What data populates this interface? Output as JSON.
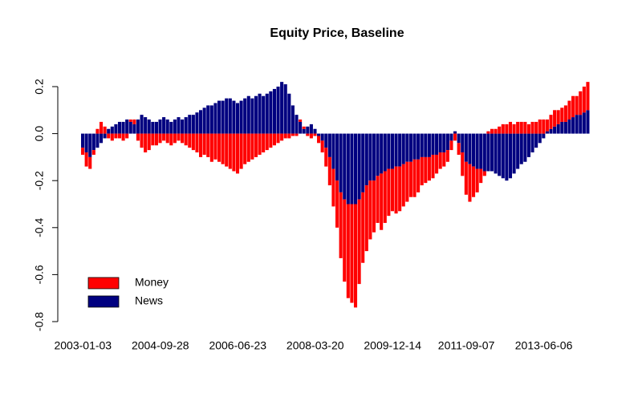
{
  "chart_data": {
    "type": "bar",
    "title": "Equity Price, Baseline",
    "categories": [
      "2003-01-03",
      null,
      null,
      null,
      null,
      null,
      null,
      null,
      null,
      null,
      null,
      null,
      null,
      null,
      null,
      null,
      null,
      null,
      null,
      null,
      null,
      "2004-09-28",
      null,
      null,
      null,
      null,
      null,
      null,
      null,
      null,
      null,
      null,
      null,
      null,
      null,
      null,
      null,
      null,
      null,
      null,
      null,
      null,
      "2006-06-23",
      null,
      null,
      null,
      null,
      null,
      null,
      null,
      null,
      null,
      null,
      null,
      null,
      null,
      null,
      null,
      null,
      null,
      null,
      null,
      null,
      "2008-03-20",
      null,
      null,
      null,
      null,
      null,
      null,
      null,
      null,
      null,
      null,
      null,
      null,
      null,
      null,
      null,
      null,
      null,
      null,
      null,
      null,
      "2009-12-14",
      null,
      null,
      null,
      null,
      null,
      null,
      null,
      null,
      null,
      null,
      null,
      null,
      null,
      null,
      null,
      null,
      null,
      null,
      null,
      "2011-09-07",
      null,
      null,
      null,
      null,
      null,
      null,
      null,
      null,
      null,
      null,
      null,
      null,
      null,
      null,
      null,
      null,
      null,
      null,
      null,
      null,
      "2013-06-06",
      null,
      null,
      null,
      null,
      null,
      null,
      null,
      null,
      null,
      null,
      null,
      null
    ],
    "series": [
      {
        "name": "Money",
        "color": "#ff0000",
        "values": [
          -0.03,
          -0.06,
          -0.05,
          -0.02,
          0.02,
          0.05,
          0.03,
          -0.02,
          -0.03,
          -0.02,
          -0.02,
          -0.03,
          -0.02,
          0.01,
          0.02,
          -0.03,
          -0.06,
          -0.08,
          -0.07,
          -0.05,
          -0.05,
          -0.04,
          -0.03,
          -0.04,
          -0.05,
          -0.04,
          -0.03,
          -0.04,
          -0.05,
          -0.06,
          -0.07,
          -0.08,
          -0.1,
          -0.09,
          -0.1,
          -0.12,
          -0.11,
          -0.12,
          -0.13,
          -0.14,
          -0.15,
          -0.16,
          -0.17,
          -0.15,
          -0.13,
          -0.12,
          -0.11,
          -0.1,
          -0.09,
          -0.08,
          -0.07,
          -0.06,
          -0.05,
          -0.04,
          -0.03,
          -0.02,
          -0.02,
          -0.01,
          -0.01,
          0.01,
          0.01,
          -0.01,
          -0.02,
          -0.01,
          -0.03,
          -0.05,
          -0.08,
          -0.12,
          -0.16,
          -0.2,
          -0.28,
          -0.35,
          -0.4,
          -0.42,
          -0.44,
          -0.36,
          -0.3,
          -0.28,
          -0.25,
          -0.22,
          -0.2,
          -0.24,
          -0.22,
          -0.2,
          -0.18,
          -0.2,
          -0.19,
          -0.18,
          -0.17,
          -0.15,
          -0.16,
          -0.14,
          -0.12,
          -0.11,
          -0.1,
          -0.1,
          -0.08,
          -0.07,
          -0.06,
          -0.05,
          -0.04,
          -0.03,
          -0.05,
          -0.1,
          -0.14,
          -0.16,
          -0.13,
          -0.1,
          -0.06,
          -0.02,
          0.01,
          0.02,
          0.02,
          0.03,
          0.04,
          0.04,
          0.05,
          0.04,
          0.05,
          0.05,
          0.05,
          0.04,
          0.05,
          0.05,
          0.06,
          0.06,
          0.05,
          0.06,
          0.07,
          0.06,
          0.06,
          0.07,
          0.08,
          0.09,
          0.08,
          0.1,
          0.11,
          0.12
        ]
      },
      {
        "name": "News",
        "color": "#000080",
        "values": [
          -0.06,
          -0.08,
          -0.1,
          -0.07,
          -0.06,
          -0.04,
          -0.02,
          0.02,
          0.03,
          0.04,
          0.05,
          0.05,
          0.06,
          0.05,
          0.04,
          0.06,
          0.08,
          0.07,
          0.06,
          0.05,
          0.05,
          0.06,
          0.07,
          0.06,
          0.05,
          0.06,
          0.07,
          0.06,
          0.07,
          0.08,
          0.08,
          0.09,
          0.1,
          0.11,
          0.12,
          0.12,
          0.13,
          0.14,
          0.14,
          0.15,
          0.15,
          0.14,
          0.13,
          0.14,
          0.15,
          0.16,
          0.15,
          0.16,
          0.17,
          0.16,
          0.17,
          0.18,
          0.19,
          0.2,
          0.22,
          0.21,
          0.17,
          0.12,
          0.08,
          0.05,
          0.02,
          0.03,
          0.04,
          0.02,
          -0.01,
          -0.03,
          -0.06,
          -0.1,
          -0.15,
          -0.2,
          -0.25,
          -0.28,
          -0.3,
          -0.3,
          -0.3,
          -0.28,
          -0.25,
          -0.22,
          -0.2,
          -0.2,
          -0.18,
          -0.17,
          -0.16,
          -0.15,
          -0.15,
          -0.14,
          -0.14,
          -0.13,
          -0.12,
          -0.12,
          -0.11,
          -0.11,
          -0.1,
          -0.1,
          -0.1,
          -0.09,
          -0.09,
          -0.08,
          -0.08,
          -0.07,
          -0.03,
          0.01,
          -0.04,
          -0.08,
          -0.12,
          -0.13,
          -0.14,
          -0.15,
          -0.15,
          -0.16,
          -0.16,
          -0.16,
          -0.17,
          -0.18,
          -0.19,
          -0.2,
          -0.19,
          -0.17,
          -0.15,
          -0.13,
          -0.12,
          -0.1,
          -0.08,
          -0.06,
          -0.04,
          -0.02,
          0.01,
          0.02,
          0.03,
          0.04,
          0.05,
          0.05,
          0.06,
          0.07,
          0.08,
          0.08,
          0.09,
          0.1
        ]
      }
    ],
    "ylim": [
      -0.8,
      0.2
    ],
    "yticks": [
      -0.8,
      -0.6,
      -0.4,
      -0.2,
      {
        "value": 0,
        "label": "0.0"
      },
      0.2
    ],
    "stacked": true,
    "legend": "bottom-left"
  }
}
